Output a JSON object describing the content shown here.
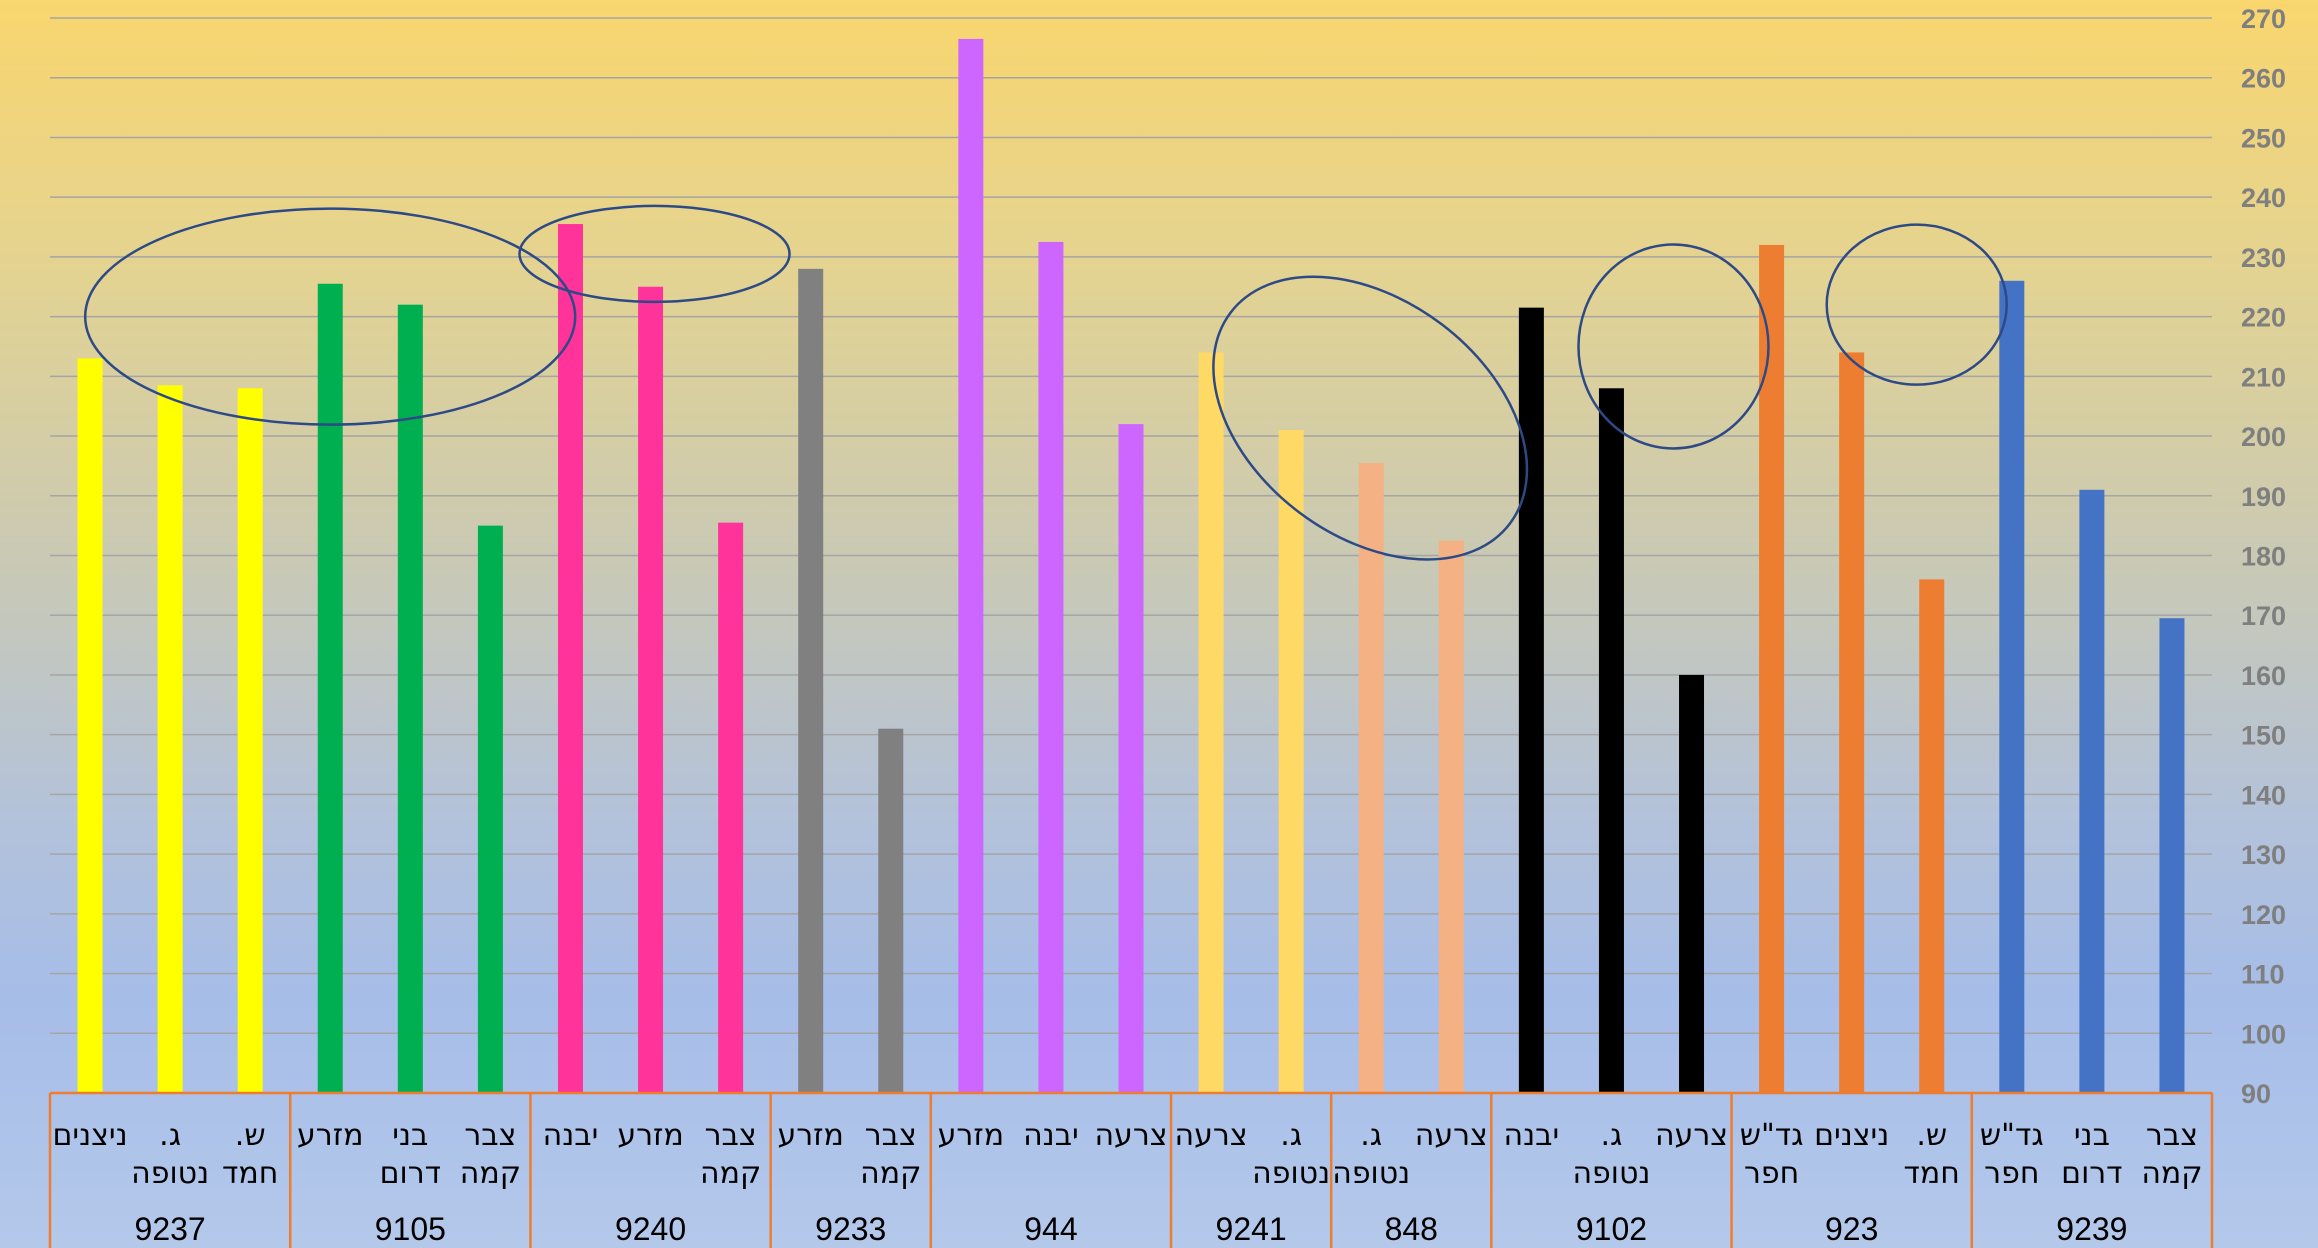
{
  "chart_data": {
    "type": "bar",
    "ylim": [
      90,
      270
    ],
    "ytick_step": 10,
    "grid": true,
    "yaxis_side": "right",
    "groups": [
      {
        "label": "9237",
        "color": "#ffff00",
        "bars": [
          {
            "category": [
              "ניצנים"
            ],
            "value": 213
          },
          {
            "category": [
              "ג.",
              "נטופה"
            ],
            "value": 208.5
          },
          {
            "category": [
              "ש.",
              "חמד"
            ],
            "value": 208
          }
        ]
      },
      {
        "label": "9105",
        "color": "#00b050",
        "bars": [
          {
            "category": [
              "מזרע"
            ],
            "value": 225.5
          },
          {
            "category": [
              "בני",
              "דרום"
            ],
            "value": 222
          },
          {
            "category": [
              "צבר",
              "קמה"
            ],
            "value": 185
          }
        ]
      },
      {
        "label": "9240",
        "color": "#ff3399",
        "bars": [
          {
            "category": [
              "יבנה"
            ],
            "value": 235.5
          },
          {
            "category": [
              "מזרע"
            ],
            "value": 225
          },
          {
            "category": [
              "צבר",
              "קמה"
            ],
            "value": 185.5
          }
        ]
      },
      {
        "label": "9233",
        "color": "#808080",
        "bars": [
          {
            "category": [
              "מזרע"
            ],
            "value": 228
          },
          {
            "category": [
              "צבר",
              "קמה"
            ],
            "value": 151
          }
        ]
      },
      {
        "label": "944",
        "color": "#cc66ff",
        "bars": [
          {
            "category": [
              "מזרע"
            ],
            "value": 266.5
          },
          {
            "category": [
              "יבנה"
            ],
            "value": 232.5
          },
          {
            "category": [
              "צרעה"
            ],
            "value": 202
          }
        ]
      },
      {
        "label": "9241",
        "color": "#ffd966",
        "bars": [
          {
            "category": [
              "צרעה"
            ],
            "value": 214
          },
          {
            "category": [
              "ג.",
              "נטופה"
            ],
            "value": 201
          }
        ]
      },
      {
        "label": "848",
        "color": "#f4b183",
        "bars": [
          {
            "category": [
              "ג.",
              "נטופה"
            ],
            "value": 195.5
          },
          {
            "category": [
              "צרעה"
            ],
            "value": 182.5
          }
        ]
      },
      {
        "label": "9102",
        "color": "#000000",
        "bars": [
          {
            "category": [
              "יבנה"
            ],
            "value": 221.5
          },
          {
            "category": [
              "ג.",
              "נטופה"
            ],
            "value": 208
          },
          {
            "category": [
              "צרעה"
            ],
            "value": 160
          }
        ]
      },
      {
        "label": "923",
        "color": "#ed7d31",
        "bars": [
          {
            "category": [
              "גד\"ש",
              "חפר"
            ],
            "value": 232
          },
          {
            "category": [
              "ניצנים"
            ],
            "value": 214
          },
          {
            "category": [
              "ש.",
              "חמד"
            ],
            "value": 176
          }
        ]
      },
      {
        "label": "9239",
        "color": "#4472c4",
        "bars": [
          {
            "category": [
              "גד\"ש",
              "חפר"
            ],
            "value": 226
          },
          {
            "category": [
              "בני",
              "דרום"
            ],
            "value": 191
          },
          {
            "category": [
              "צבר",
              "קמה"
            ],
            "value": 169.5
          }
        ]
      }
    ],
    "highlight_ellipses_around": [
      "9237 + 9105",
      "9240",
      "9241 + 848",
      "9102",
      "923"
    ]
  }
}
